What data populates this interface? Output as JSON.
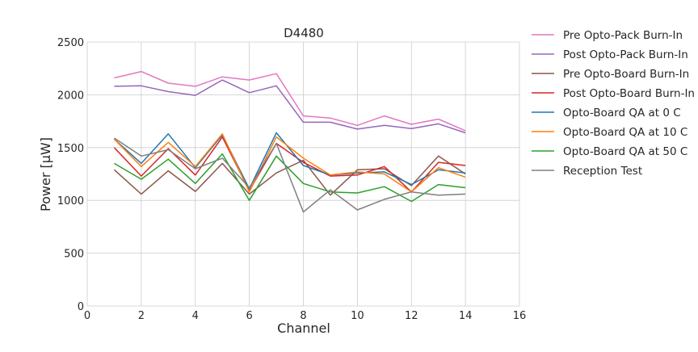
{
  "chart_data": {
    "type": "line",
    "title": "D4480",
    "xlabel": "Channel",
    "ylabel": "Power [μW]",
    "xlim": [
      0,
      16
    ],
    "ylim": [
      0,
      2500
    ],
    "xticks": [
      0,
      2,
      4,
      6,
      8,
      10,
      12,
      14,
      16
    ],
    "yticks": [
      0,
      500,
      1000,
      1500,
      2000,
      2500
    ],
    "grid": true,
    "legend_position": "outside-right",
    "x": [
      1,
      2,
      3,
      4,
      5,
      6,
      7,
      8,
      9,
      10,
      11,
      12,
      13,
      14
    ],
    "series": [
      {
        "name": "Pre Opto-Pack Burn-In",
        "color": "#e377c2",
        "values": [
          2160,
          2220,
          2110,
          2080,
          2170,
          2140,
          2200,
          1800,
          1780,
          1710,
          1800,
          1720,
          1770,
          1660
        ]
      },
      {
        "name": "Post Opto-Pack Burn-In",
        "color": "#9467bd",
        "values": [
          2080,
          2085,
          2030,
          1995,
          2140,
          2020,
          2085,
          1740,
          1740,
          1675,
          1710,
          1680,
          1725,
          1640
        ]
      },
      {
        "name": "Pre Opto-Board Burn-In",
        "color": "#8c564b",
        "values": [
          1290,
          1060,
          1280,
          1085,
          1350,
          1060,
          1260,
          1380,
          1050,
          1290,
          1300,
          1140,
          1420,
          1250
        ]
      },
      {
        "name": "Post Opto-Board Burn-In",
        "color": "#d62728",
        "values": [
          1500,
          1230,
          1490,
          1240,
          1600,
          1090,
          1540,
          1360,
          1230,
          1240,
          1320,
          1080,
          1360,
          1330
        ]
      },
      {
        "name": "Opto-Board QA at 0 C",
        "color": "#1f77b4",
        "values": [
          1580,
          1350,
          1630,
          1310,
          1620,
          1110,
          1640,
          1330,
          1240,
          1260,
          1270,
          1150,
          1290,
          1260
        ]
      },
      {
        "name": "Opto-Board QA at 10 C",
        "color": "#ff7f0e",
        "values": [
          1580,
          1320,
          1550,
          1320,
          1630,
          1080,
          1600,
          1400,
          1240,
          1270,
          1250,
          1080,
          1310,
          1220
        ]
      },
      {
        "name": "Opto-Board QA at 50 C",
        "color": "#2ca02c",
        "values": [
          1350,
          1200,
          1390,
          1160,
          1440,
          1000,
          1420,
          1160,
          1080,
          1070,
          1130,
          990,
          1150,
          1120
        ]
      },
      {
        "name": "Reception Test",
        "color": "#7f7f7f",
        "values": [
          1590,
          1420,
          1480,
          1300,
          1400,
          1120,
          1540,
          890,
          1100,
          910,
          1010,
          1080,
          1050,
          1060
        ]
      }
    ]
  }
}
